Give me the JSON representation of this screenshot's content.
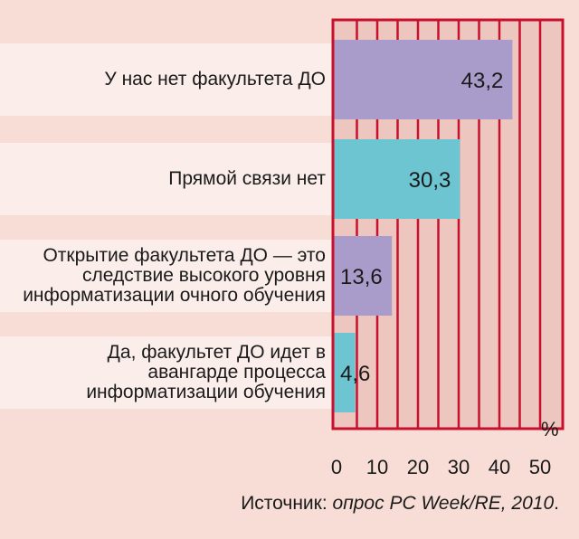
{
  "chart_data": {
    "type": "bar",
    "orientation": "horizontal",
    "categories": [
      "У нас нет факультета ДО",
      "Прямой связи нет",
      "Открытие факультета ДО — это\nследствие высокого уровня\nинформатизации очного обучения",
      "Да, факультет ДО идет в\nавангарде процесса\nинформатизации обучения"
    ],
    "values": [
      43.2,
      30.3,
      13.6,
      4.6
    ],
    "value_labels": [
      "43,2",
      "30,3",
      "13,6",
      "4,6"
    ],
    "bar_colors": [
      "#a99ccb",
      "#6ec5d2",
      "#a99ccb",
      "#6ec5d2"
    ],
    "x_ticks": [
      "0",
      "10",
      "20",
      "30",
      "40",
      "50"
    ],
    "x_tick_values": [
      0,
      10,
      20,
      30,
      40,
      50
    ],
    "xlim": [
      0,
      50
    ],
    "unit": "%",
    "grid": true,
    "colors": {
      "background": "#f7ddd6",
      "plot_background": "#ecc6bf",
      "grid_line": "#c8102e",
      "label_band": "#fbeeea",
      "text": "#1a1a1a"
    }
  },
  "source": {
    "prefix": "Источник: ",
    "italic": "опрос PC Week/RE, 2010",
    "suffix": "."
  }
}
